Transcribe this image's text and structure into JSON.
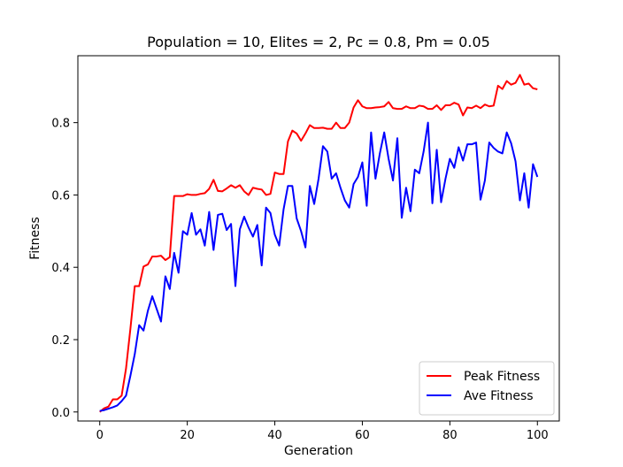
{
  "chart_data": {
    "type": "line",
    "title": "Population = 10, Elites = 2, Pc = 0.8, Pm = 0.05",
    "xlabel": "Generation",
    "ylabel": "Fitness",
    "xlim": [
      -5,
      105
    ],
    "ylim": [
      -0.025,
      0.985
    ],
    "xticks": [
      0,
      20,
      40,
      60,
      80,
      100
    ],
    "yticks": [
      0.0,
      0.2,
      0.4,
      0.6,
      0.8
    ],
    "grid": false,
    "legend": "lower-right",
    "series": [
      {
        "name": "Peak Fitness",
        "color": "#ff0000",
        "values": [
          0.0,
          0.01,
          0.015,
          0.035,
          0.035,
          0.045,
          0.12,
          0.23,
          0.348,
          0.348,
          0.402,
          0.408,
          0.43,
          0.43,
          0.432,
          0.42,
          0.428,
          0.597,
          0.597,
          0.597,
          0.602,
          0.6,
          0.6,
          0.603,
          0.605,
          0.617,
          0.642,
          0.611,
          0.61,
          0.618,
          0.627,
          0.62,
          0.627,
          0.61,
          0.6,
          0.62,
          0.617,
          0.615,
          0.6,
          0.603,
          0.662,
          0.658,
          0.658,
          0.748,
          0.778,
          0.77,
          0.75,
          0.77,
          0.793,
          0.785,
          0.785,
          0.786,
          0.783,
          0.783,
          0.8,
          0.785,
          0.785,
          0.8,
          0.842,
          0.862,
          0.845,
          0.84,
          0.84,
          0.842,
          0.843,
          0.845,
          0.857,
          0.84,
          0.838,
          0.838,
          0.845,
          0.84,
          0.84,
          0.847,
          0.845,
          0.838,
          0.838,
          0.848,
          0.835,
          0.848,
          0.848,
          0.855,
          0.85,
          0.82,
          0.842,
          0.84,
          0.847,
          0.84,
          0.85,
          0.845,
          0.847,
          0.902,
          0.893,
          0.915,
          0.905,
          0.91,
          0.932,
          0.905,
          0.908,
          0.895,
          0.892
        ]
      },
      {
        "name": "Ave Fitness",
        "color": "#0000ff",
        "values": [
          0.003,
          0.005,
          0.009,
          0.013,
          0.018,
          0.03,
          0.045,
          0.1,
          0.16,
          0.24,
          0.225,
          0.28,
          0.32,
          0.285,
          0.25,
          0.375,
          0.34,
          0.44,
          0.385,
          0.5,
          0.49,
          0.55,
          0.49,
          0.505,
          0.46,
          0.553,
          0.448,
          0.545,
          0.548,
          0.503,
          0.52,
          0.348,
          0.505,
          0.54,
          0.51,
          0.485,
          0.517,
          0.405,
          0.565,
          0.55,
          0.49,
          0.46,
          0.56,
          0.625,
          0.625,
          0.535,
          0.5,
          0.455,
          0.625,
          0.575,
          0.645,
          0.735,
          0.72,
          0.645,
          0.66,
          0.62,
          0.585,
          0.565,
          0.63,
          0.65,
          0.69,
          0.57,
          0.773,
          0.645,
          0.715,
          0.773,
          0.7,
          0.64,
          0.757,
          0.537,
          0.62,
          0.555,
          0.67,
          0.66,
          0.72,
          0.8,
          0.577,
          0.725,
          0.58,
          0.645,
          0.7,
          0.675,
          0.732,
          0.695,
          0.74,
          0.74,
          0.745,
          0.587,
          0.64,
          0.745,
          0.73,
          0.72,
          0.715,
          0.773,
          0.743,
          0.693,
          0.585,
          0.66,
          0.565,
          0.685,
          0.65
        ]
      }
    ]
  }
}
